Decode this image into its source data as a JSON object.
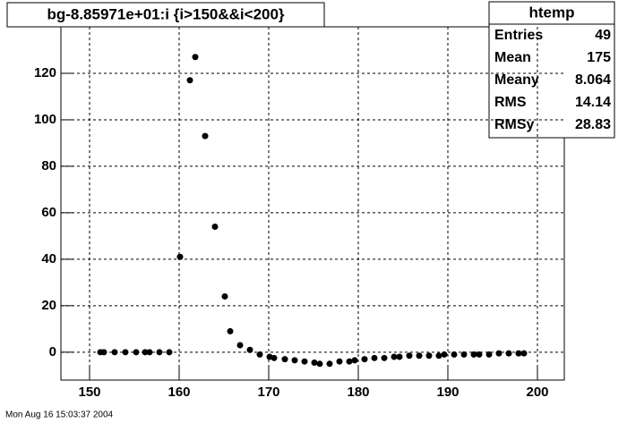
{
  "chart_data": {
    "type": "scatter",
    "title": "bg-8.85971e+01:i {i>150&&i<200}",
    "x": [
      151.2,
      151.6,
      152.8,
      154.0,
      155.2,
      156.2,
      156.7,
      157.8,
      158.9,
      160.1,
      161.2,
      161.8,
      162.9,
      164.0,
      165.1,
      165.7,
      166.8,
      167.9,
      169.0,
      170.1,
      170.6,
      171.8,
      172.9,
      174.0,
      175.1,
      175.7,
      176.8,
      177.9,
      179.0,
      179.6,
      180.7,
      181.8,
      182.9,
      184.0,
      184.6,
      185.7,
      186.8,
      187.9,
      189.0,
      189.6,
      190.7,
      191.8,
      192.9,
      193.5,
      194.6,
      195.7,
      196.8,
      197.9,
      198.5
    ],
    "series": [
      {
        "color": "#000000",
        "values": [
          0,
          0,
          0,
          0,
          0,
          0,
          0,
          0,
          0,
          41,
          117,
          127,
          93,
          54,
          24,
          9,
          3,
          1,
          -1,
          -2,
          -2.5,
          -3,
          -3.5,
          -4,
          -4.5,
          -5,
          -5,
          -4,
          -4,
          -3.5,
          -3,
          -2.5,
          -2.5,
          -2,
          -2,
          -1.5,
          -1.5,
          -1.5,
          -1.5,
          -1,
          -1,
          -1,
          -1,
          -1,
          -1,
          -0.5,
          -0.5,
          -0.5,
          -0.5
        ]
      }
    ],
    "xlim": [
      146.8,
      203
    ],
    "ylim": [
      -12,
      140
    ],
    "xticks": [
      150,
      160,
      170,
      180,
      190,
      200
    ],
    "yticks": [
      0,
      20,
      40,
      60,
      80,
      100,
      120
    ],
    "grid": true,
    "stats": {
      "title": "htemp",
      "rows": [
        [
          "Entries",
          49
        ],
        [
          "Mean",
          175
        ],
        [
          "Meany",
          8.064
        ],
        [
          "RMS",
          14.14
        ],
        [
          "RMSy",
          28.83
        ]
      ]
    },
    "timestamp": "Mon Aug 16 15:03:37 2004"
  }
}
